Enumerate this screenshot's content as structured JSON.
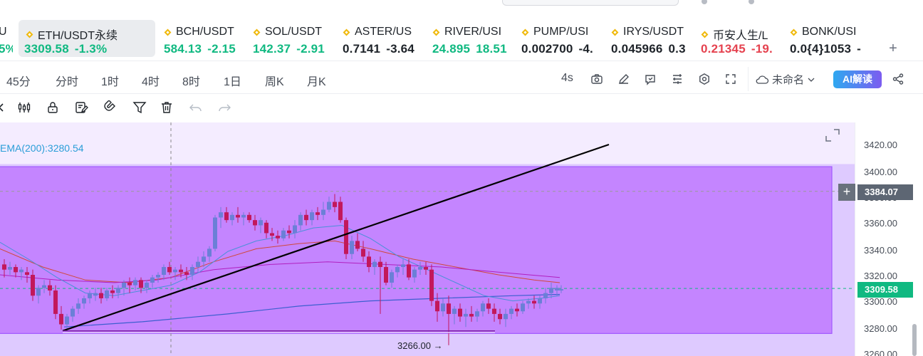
{
  "tickers": [
    {
      "symbol": "U",
      "price": "",
      "change": "5%",
      "changeClass": "up",
      "partial": true
    },
    {
      "symbol": "ETH/USDT永续",
      "price": "3309.58",
      "change": "-1.3%",
      "priceClass": "up",
      "changeClass": "up",
      "active": true
    },
    {
      "symbol": "BCH/USDT",
      "price": "584.13",
      "change": "-2.15",
      "priceClass": "up",
      "changeClass": "up"
    },
    {
      "symbol": "SOL/USDT",
      "price": "142.37",
      "change": "-2.91",
      "priceClass": "up",
      "changeClass": "up"
    },
    {
      "symbol": "ASTER/US",
      "price": "0.7141",
      "change": "-3.64",
      "priceClass": "neutral",
      "changeClass": "neutral"
    },
    {
      "symbol": "RIVER/USI",
      "price": "24.895",
      "change": "18.51",
      "priceClass": "up",
      "changeClass": "up"
    },
    {
      "symbol": "PUMP/USI",
      "price": "0.002700",
      "change": "-4.",
      "priceClass": "neutral",
      "changeClass": "neutral"
    },
    {
      "symbol": "IRYS/USDT",
      "price": "0.045966",
      "change": "0.3",
      "priceClass": "neutral",
      "changeClass": "neutral"
    },
    {
      "symbol": "币安人生/L",
      "price": "0.21345",
      "change": "-19.",
      "priceClass": "down",
      "changeClass": "down"
    },
    {
      "symbol": "BONK/USI",
      "price": "0.0{4}1053",
      "change": "-",
      "priceClass": "neutral",
      "changeClass": "neutral"
    }
  ],
  "add_label": "+",
  "timeframes": [
    "45分",
    "分时",
    "1时",
    "4时",
    "8时",
    "1日",
    "周K",
    "月K"
  ],
  "refresh_interval": "4s",
  "layout_name": "未命名",
  "ai_button": "AI解读",
  "indicator_label": "EMA(200):3280.54",
  "yaxis": {
    "ticks": [
      "3420.00",
      "3400.00",
      "3380.00",
      "3360.00",
      "3340.00",
      "3320.00",
      "3300.00",
      "3280.00",
      "3260.00"
    ]
  },
  "crosshair_price": "3384.07",
  "last_price": "3309.58",
  "low_label": "3266.00 →",
  "colors": {
    "up": "#10b981",
    "down": "#e5424f",
    "zone": "#c27eff",
    "up_candle": "#6b7fd7",
    "down_candle": "#c2185b",
    "ema_short": "#4a90d9",
    "ema_mid": "#d0483a",
    "ema_long": "#3c5fcf"
  }
}
